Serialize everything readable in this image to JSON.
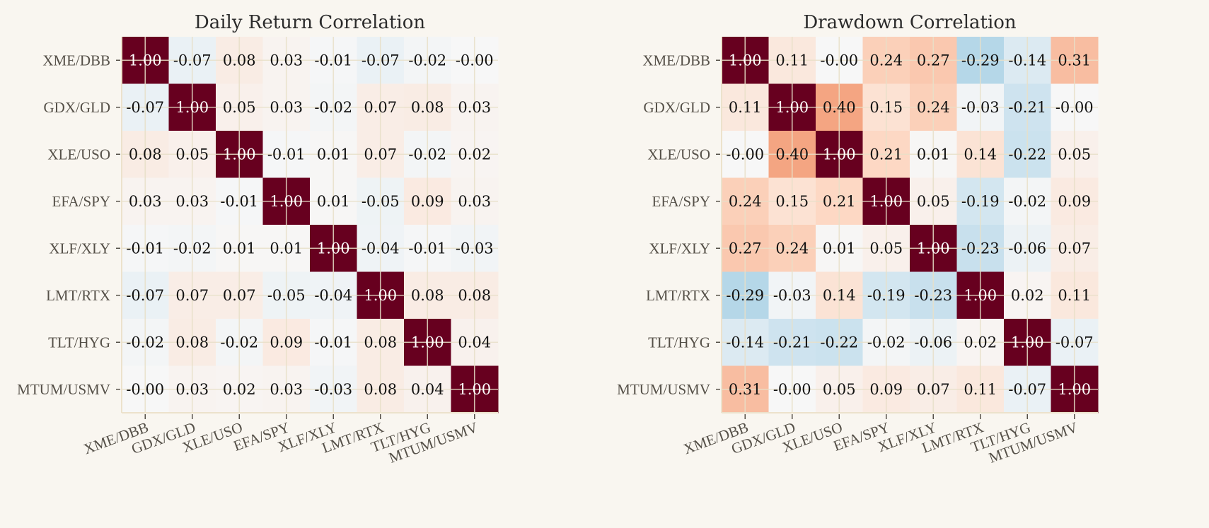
{
  "chart_data": [
    {
      "type": "heatmap",
      "title": "Daily Return Correlation",
      "xlabel": "",
      "ylabel": "",
      "labels": [
        "XME/DBB",
        "GDX/GLD",
        "XLE/USO",
        "EFA/SPY",
        "XLF/XLY",
        "LMT/RTX",
        "TLT/HYG",
        "MTUM/USMV"
      ],
      "vmin": -1,
      "vmax": 1,
      "colormap": "RdBu_r",
      "grid": true,
      "values": [
        [
          1.0,
          -0.07,
          0.08,
          0.03,
          -0.01,
          -0.07,
          -0.02,
          -0.0
        ],
        [
          -0.07,
          1.0,
          0.05,
          0.03,
          -0.02,
          0.07,
          0.08,
          0.03
        ],
        [
          0.08,
          0.05,
          1.0,
          -0.01,
          0.01,
          0.07,
          -0.02,
          0.02
        ],
        [
          0.03,
          0.03,
          -0.01,
          1.0,
          0.01,
          -0.05,
          0.09,
          0.03
        ],
        [
          -0.01,
          -0.02,
          0.01,
          0.01,
          1.0,
          -0.04,
          -0.01,
          -0.03
        ],
        [
          -0.07,
          0.07,
          0.07,
          -0.05,
          -0.04,
          1.0,
          0.08,
          0.08
        ],
        [
          -0.02,
          0.08,
          -0.02,
          0.09,
          -0.01,
          0.08,
          1.0,
          0.04
        ],
        [
          -0.0,
          0.03,
          0.02,
          0.03,
          -0.03,
          0.08,
          0.04,
          1.0
        ]
      ],
      "value_labels": [
        [
          "1.00",
          "-0.07",
          "0.08",
          "0.03",
          "-0.01",
          "-0.07",
          "-0.02",
          "-0.00"
        ],
        [
          "-0.07",
          "1.00",
          "0.05",
          "0.03",
          "-0.02",
          "0.07",
          "0.08",
          "0.03"
        ],
        [
          "0.08",
          "0.05",
          "1.00",
          "-0.01",
          "0.01",
          "0.07",
          "-0.02",
          "0.02"
        ],
        [
          "0.03",
          "0.03",
          "-0.01",
          "1.00",
          "0.01",
          "-0.05",
          "0.09",
          "0.03"
        ],
        [
          "-0.01",
          "-0.02",
          "0.01",
          "0.01",
          "1.00",
          "-0.04",
          "-0.01",
          "-0.03"
        ],
        [
          "-0.07",
          "0.07",
          "0.07",
          "-0.05",
          "-0.04",
          "1.00",
          "0.08",
          "0.08"
        ],
        [
          "-0.02",
          "0.08",
          "-0.02",
          "0.09",
          "-0.01",
          "0.08",
          "1.00",
          "0.04"
        ],
        [
          "-0.00",
          "0.03",
          "0.02",
          "0.03",
          "-0.03",
          "0.08",
          "0.04",
          "1.00"
        ]
      ]
    },
    {
      "type": "heatmap",
      "title": "Drawdown Correlation",
      "xlabel": "",
      "ylabel": "",
      "labels": [
        "XME/DBB",
        "GDX/GLD",
        "XLE/USO",
        "EFA/SPY",
        "XLF/XLY",
        "LMT/RTX",
        "TLT/HYG",
        "MTUM/USMV"
      ],
      "vmin": -1,
      "vmax": 1,
      "colormap": "RdBu_r",
      "grid": true,
      "values": [
        [
          1.0,
          0.11,
          -0.0,
          0.24,
          0.27,
          -0.29,
          -0.14,
          0.31
        ],
        [
          0.11,
          1.0,
          0.4,
          0.15,
          0.24,
          -0.03,
          -0.21,
          -0.0
        ],
        [
          -0.0,
          0.4,
          1.0,
          0.21,
          0.01,
          0.14,
          -0.22,
          0.05
        ],
        [
          0.24,
          0.15,
          0.21,
          1.0,
          0.05,
          -0.19,
          -0.02,
          0.09
        ],
        [
          0.27,
          0.24,
          0.01,
          0.05,
          1.0,
          -0.23,
          -0.06,
          0.07
        ],
        [
          -0.29,
          -0.03,
          0.14,
          -0.19,
          -0.23,
          1.0,
          0.02,
          0.11
        ],
        [
          -0.14,
          -0.21,
          -0.22,
          -0.02,
          -0.06,
          0.02,
          1.0,
          -0.07
        ],
        [
          0.31,
          -0.0,
          0.05,
          0.09,
          0.07,
          0.11,
          -0.07,
          1.0
        ]
      ],
      "value_labels": [
        [
          "1.00",
          "0.11",
          "-0.00",
          "0.24",
          "0.27",
          "-0.29",
          "-0.14",
          "0.31"
        ],
        [
          "0.11",
          "1.00",
          "0.40",
          "0.15",
          "0.24",
          "-0.03",
          "-0.21",
          "-0.00"
        ],
        [
          "-0.00",
          "0.40",
          "1.00",
          "0.21",
          "0.01",
          "0.14",
          "-0.22",
          "0.05"
        ],
        [
          "0.24",
          "0.15",
          "0.21",
          "1.00",
          "0.05",
          "-0.19",
          "-0.02",
          "0.09"
        ],
        [
          "0.27",
          "0.24",
          "0.01",
          "0.05",
          "1.00",
          "-0.23",
          "-0.06",
          "0.07"
        ],
        [
          "-0.29",
          "-0.03",
          "0.14",
          "-0.19",
          "-0.23",
          "1.00",
          "0.02",
          "0.11"
        ],
        [
          "-0.14",
          "-0.21",
          "-0.22",
          "-0.02",
          "-0.06",
          "0.02",
          "1.00",
          "-0.07"
        ],
        [
          "0.31",
          "-0.00",
          "0.05",
          "0.09",
          "0.07",
          "0.11",
          "-0.07",
          "1.00"
        ]
      ]
    }
  ]
}
